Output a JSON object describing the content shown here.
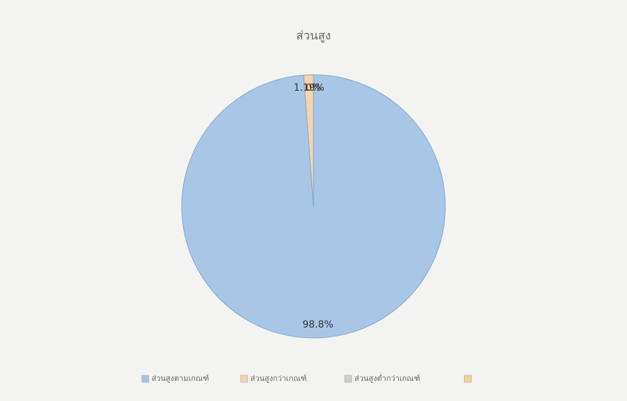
{
  "chart_data": {
    "type": "pie",
    "title": "ส่วนสูง",
    "categories": [
      "ส่วนสูงตามเกณฑ์",
      "ส่วนสูงกว่าเกณฑ์",
      "ส่วนสูงต่ำกว่าเกณฑ์",
      null
    ],
    "values": [
      98.8,
      1.19,
      0,
      0
    ],
    "value_labels": [
      "98.8%",
      "1.19%",
      "0%",
      null
    ],
    "colors": [
      "#a8c7e6",
      "#f7d3ab",
      "#cfcfcf",
      "#f5d58c"
    ],
    "legend": "bottom"
  }
}
